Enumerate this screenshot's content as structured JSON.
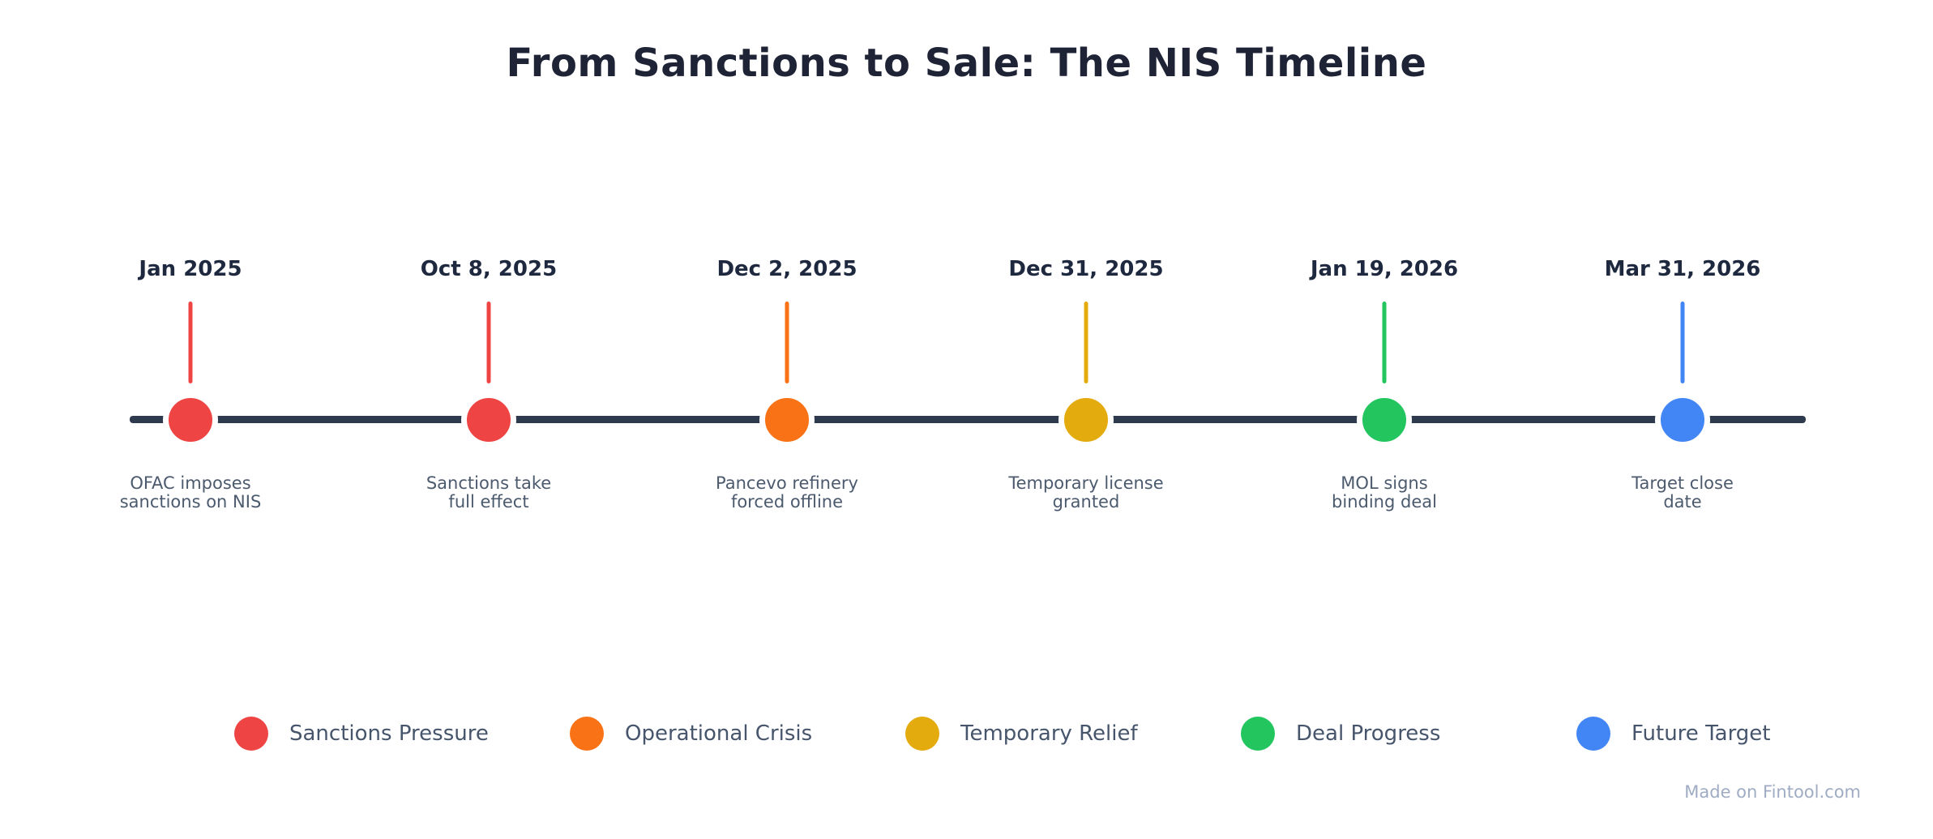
{
  "title": "From Sanctions to Sale: The NIS Timeline",
  "colors": {
    "axis": "#2e3b4e",
    "sanctions_pressure": "#ee4444",
    "operational_crisis": "#f97316",
    "temporary_relief": "#e4ab0f",
    "deal_progress": "#22c55e",
    "future_target": "#4285f4"
  },
  "timeline": {
    "events": [
      {
        "date": "Jan 2025",
        "label_line1": "OFAC imposes",
        "label_line2": "sanctions on NIS",
        "category": "Sanctions Pressure",
        "color": "#ee4444"
      },
      {
        "date": "Oct 8, 2025",
        "label_line1": "Sanctions take",
        "label_line2": "full effect",
        "category": "Sanctions Pressure",
        "color": "#ee4444"
      },
      {
        "date": "Dec 2, 2025",
        "label_line1": "Pancevo refinery",
        "label_line2": "forced offline",
        "category": "Operational Crisis",
        "color": "#f97316"
      },
      {
        "date": "Dec 31, 2025",
        "label_line1": "Temporary license",
        "label_line2": "granted",
        "category": "Temporary Relief",
        "color": "#e4ab0f"
      },
      {
        "date": "Jan 19, 2026",
        "label_line1": "MOL signs",
        "label_line2": "binding deal",
        "category": "Deal Progress",
        "color": "#22c55e"
      },
      {
        "date": "Mar 31, 2026",
        "label_line1": "Target close",
        "label_line2": "date",
        "category": "Future Target",
        "color": "#4285f4"
      }
    ]
  },
  "legend": {
    "items": [
      {
        "label": "Sanctions Pressure",
        "color": "#ee4444"
      },
      {
        "label": "Operational Crisis",
        "color": "#f97316"
      },
      {
        "label": "Temporary Relief",
        "color": "#e4ab0f"
      },
      {
        "label": "Deal Progress",
        "color": "#22c55e"
      },
      {
        "label": "Future Target",
        "color": "#4285f4"
      }
    ]
  },
  "footer": {
    "credit": "Made on Fintool.com"
  }
}
